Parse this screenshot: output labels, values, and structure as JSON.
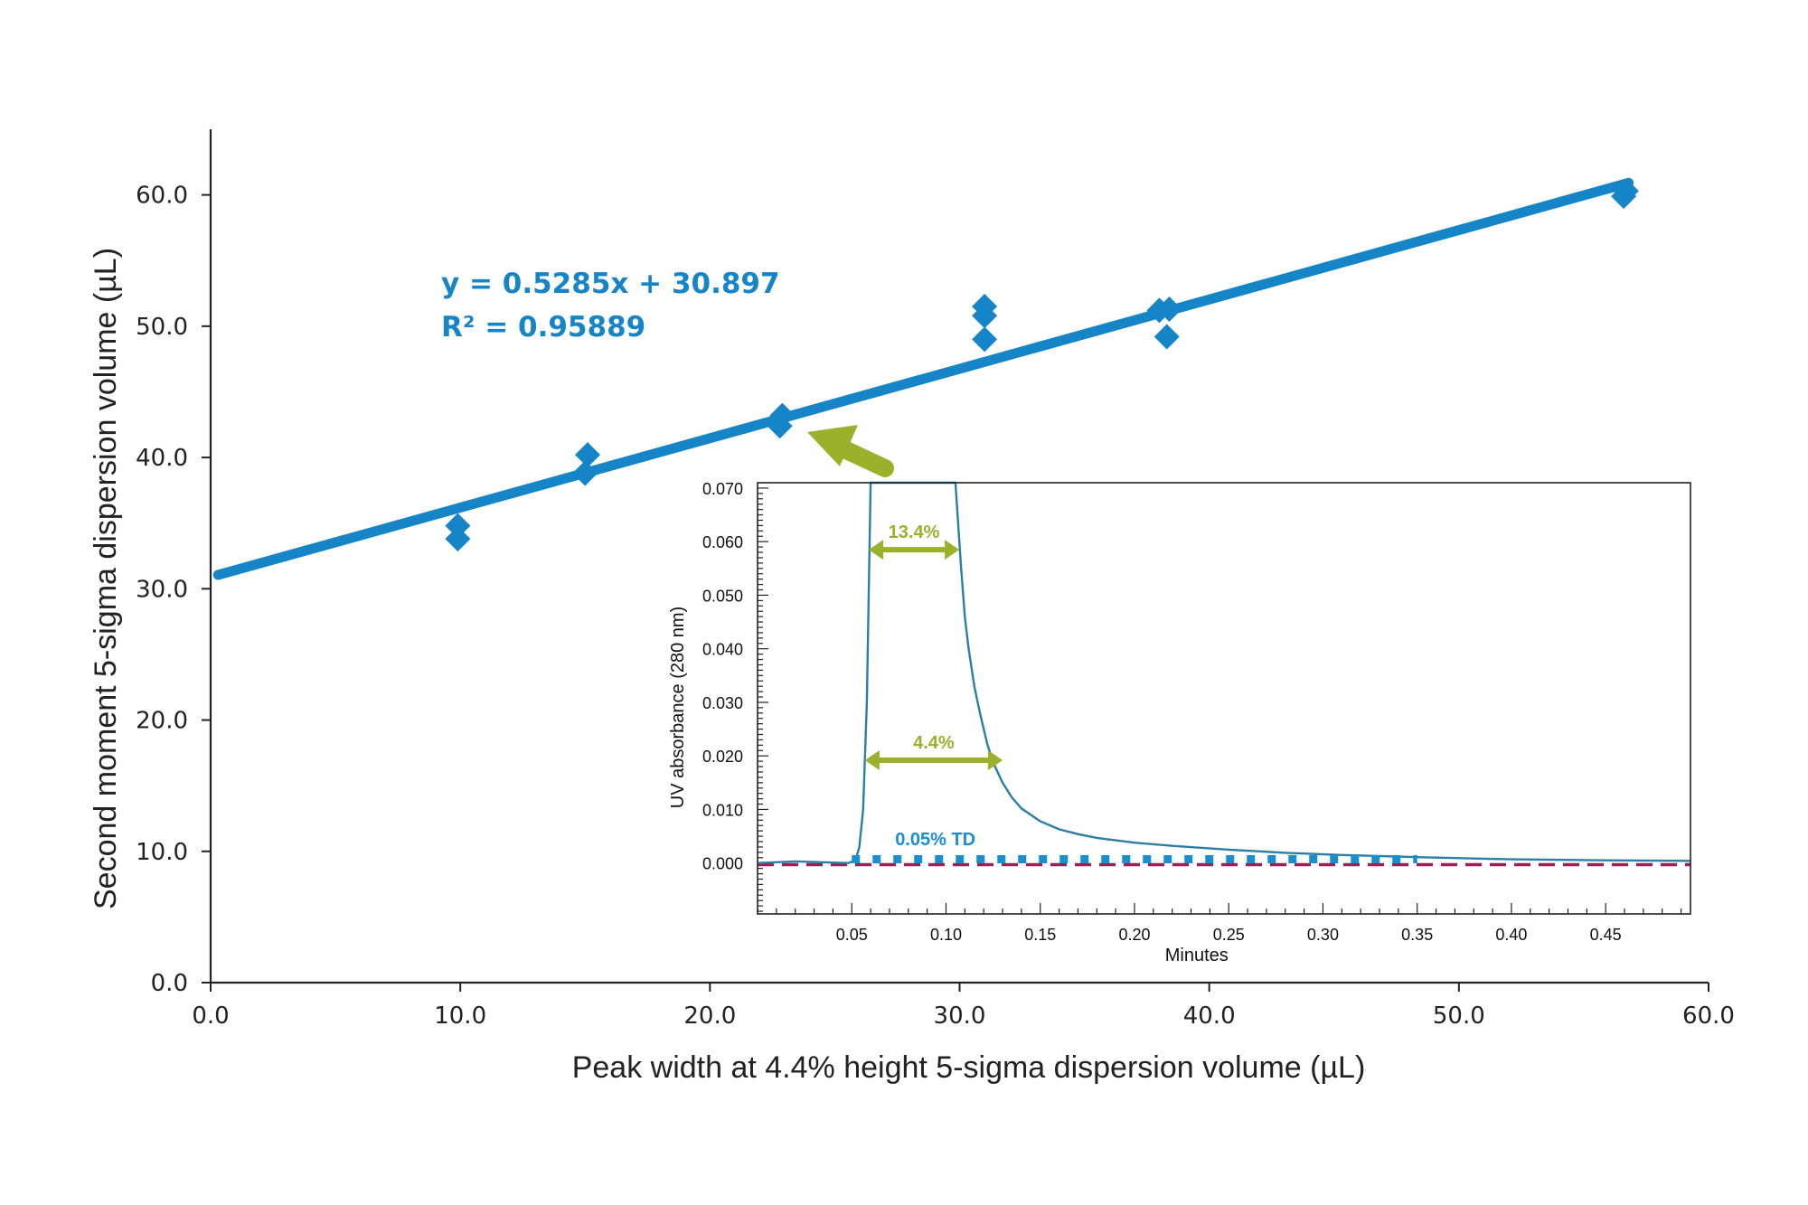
{
  "chart_data": [
    {
      "type": "scatter",
      "xlabel": "Peak width at 4.4% height 5-sigma dispersion volume (µL)",
      "ylabel": "Second moment 5-sigma dispersion volume (µL)",
      "xlim": [
        0,
        60
      ],
      "ylim": [
        0,
        65
      ],
      "x_ticks": [
        "0.0",
        "10.0",
        "20.0",
        "30.0",
        "40.0",
        "50.0",
        "60.0"
      ],
      "y_ticks": [
        "0.0",
        "10.0",
        "20.0",
        "30.0",
        "40.0",
        "50.0",
        "60.0"
      ],
      "grid": false,
      "points": [
        {
          "x": 9.9,
          "y": 34.8
        },
        {
          "x": 9.9,
          "y": 33.8
        },
        {
          "x": 15.1,
          "y": 40.2
        },
        {
          "x": 15.0,
          "y": 38.8
        },
        {
          "x": 22.9,
          "y": 43.2
        },
        {
          "x": 22.8,
          "y": 42.4
        },
        {
          "x": 31.0,
          "y": 51.5
        },
        {
          "x": 31.0,
          "y": 50.8
        },
        {
          "x": 31.0,
          "y": 49.0
        },
        {
          "x": 38.0,
          "y": 51.2
        },
        {
          "x": 38.4,
          "y": 51.3
        },
        {
          "x": 38.3,
          "y": 49.2
        },
        {
          "x": 56.7,
          "y": 60.3
        },
        {
          "x": 56.6,
          "y": 59.9
        }
      ],
      "trendline": {
        "slope": 0.5285,
        "intercept": 30.897,
        "x_range": [
          0.3,
          56.8
        ],
        "equation_label": "y = 0.5285x + 30.897",
        "r2_label": "R² = 0.95889"
      },
      "colors": {
        "series": "#1585c8",
        "arrow": "#9bb02b"
      }
    },
    {
      "type": "line",
      "xlabel": "Minutes",
      "ylabel": "UV absorbance (280 nm)",
      "xlim": [
        0,
        0.495
      ],
      "ylim": [
        -0.0095,
        0.071
      ],
      "x_ticks": [
        "0.05",
        "0.10",
        "0.15",
        "0.20",
        "0.25",
        "0.30",
        "0.35",
        "0.40",
        "0.45"
      ],
      "y_ticks": [
        "0.000",
        "0.010",
        "0.020",
        "0.030",
        "0.040",
        "0.050",
        "0.060",
        "0.070"
      ],
      "grid": false,
      "trace": {
        "x": [
          0.0,
          0.02,
          0.048,
          0.052,
          0.054,
          0.056,
          0.058,
          0.06,
          0.105,
          0.108,
          0.11,
          0.112,
          0.115,
          0.118,
          0.122,
          0.126,
          0.13,
          0.135,
          0.14,
          0.15,
          0.16,
          0.17,
          0.18,
          0.2,
          0.22,
          0.25,
          0.28,
          0.31,
          0.35,
          0.4,
          0.45,
          0.495
        ],
        "y": [
          0.0,
          0.0003,
          0.0,
          0.0005,
          0.003,
          0.01,
          0.03,
          0.075,
          0.075,
          0.055,
          0.046,
          0.04,
          0.033,
          0.028,
          0.022,
          0.018,
          0.015,
          0.0122,
          0.0102,
          0.0078,
          0.0063,
          0.0054,
          0.0047,
          0.0038,
          0.0032,
          0.0025,
          0.0019,
          0.0015,
          0.0011,
          0.0007,
          0.0005,
          0.0004
        ]
      },
      "baseline_y": -0.0003,
      "td_line": {
        "x_range": [
          0.05,
          0.35
        ],
        "y": 0.0007
      },
      "annotations": [
        {
          "text": "13.4%",
          "x1": 0.059,
          "x2": 0.107,
          "y": 0.0585
        },
        {
          "text": "4.4%",
          "x1": 0.057,
          "x2": 0.13,
          "y": 0.0192
        },
        {
          "text": "0.05% TD",
          "x": 0.073,
          "y": 0.0033
        }
      ],
      "colors": {
        "trace": "#2b7fa7",
        "baseline": "#9c1f55",
        "td": "#1a8fcf",
        "annotation": "#9bb02b"
      }
    }
  ]
}
